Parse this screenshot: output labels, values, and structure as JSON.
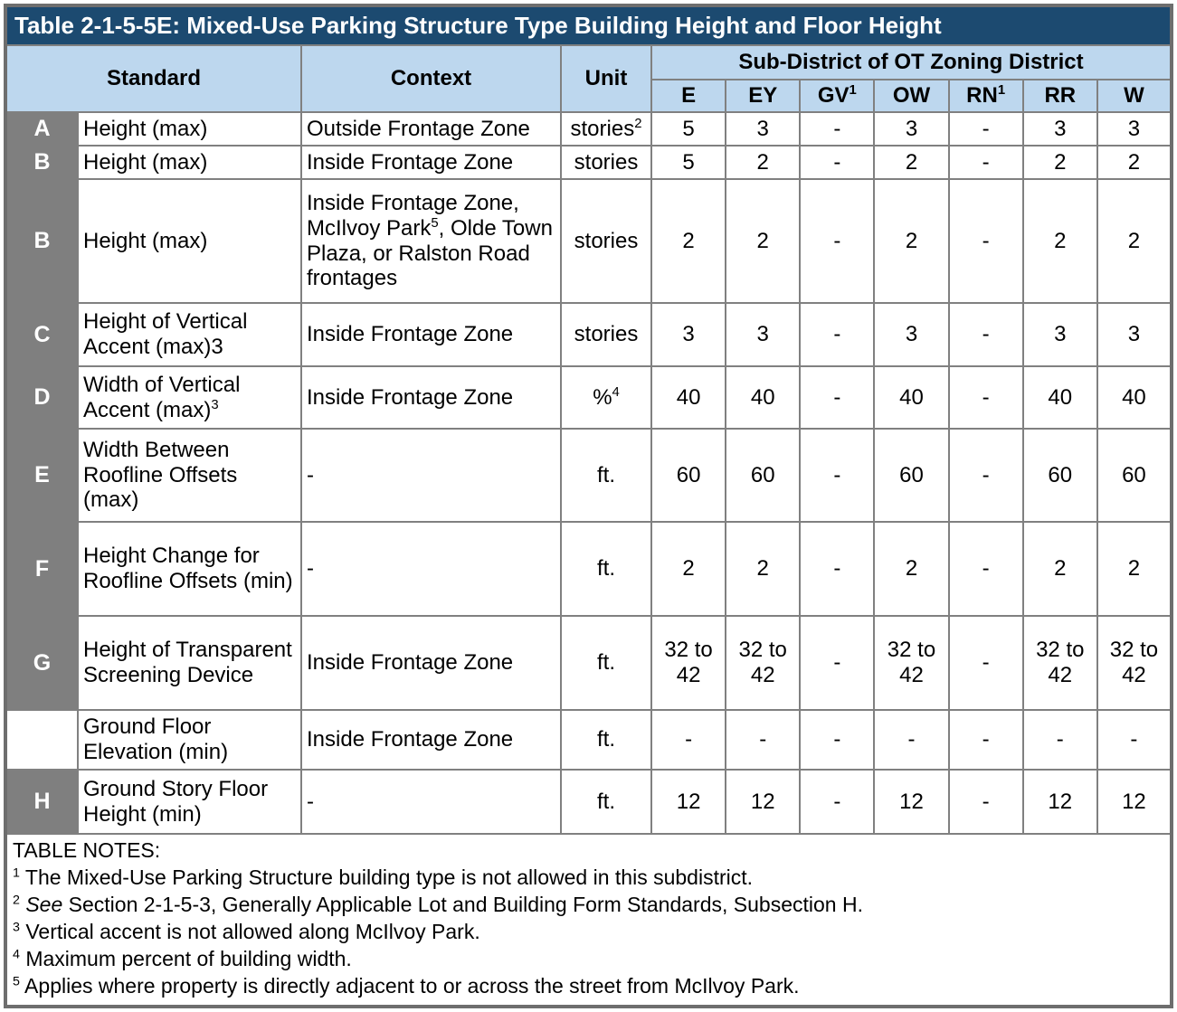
{
  "title": "Table 2-1-5-5E: Mixed-Use Parking Structure Type Building Height and Floor Height",
  "colors": {
    "title_bar": "#1C4A70",
    "header_fill": "#BDD7EE",
    "letter_column_fill": "#7F7F7F",
    "grid_border": "#808080"
  },
  "header": {
    "standard": "Standard",
    "context": "Context",
    "unit": "Unit",
    "subdistrict_group": "Sub-District of OT Zoning District",
    "districts": [
      {
        "label": "E"
      },
      {
        "label": "EY"
      },
      {
        "label": "GV",
        "sup": "1"
      },
      {
        "label": "OW"
      },
      {
        "label": "RN",
        "sup": "1"
      },
      {
        "label": "RR"
      },
      {
        "label": "W"
      }
    ]
  },
  "rows": [
    {
      "letter": "A",
      "standard": [
        {
          "t": "Height (max)"
        }
      ],
      "context": [
        {
          "t": "Outside Frontage Zone"
        }
      ],
      "unit": [
        {
          "t": "stories"
        },
        {
          "sup": "2"
        }
      ],
      "values": [
        "5",
        "3",
        "-",
        "3",
        "-",
        "3",
        "3"
      ]
    },
    {
      "letter": "B",
      "standard": [
        {
          "t": "Height (max)"
        }
      ],
      "context": [
        {
          "t": "Inside Frontage Zone"
        }
      ],
      "unit": [
        {
          "t": "stories"
        }
      ],
      "values": [
        "5",
        "2",
        "-",
        "2",
        "-",
        "2",
        "2"
      ]
    },
    {
      "letter": "B",
      "standard": [
        {
          "t": "Height (max)"
        }
      ],
      "context": [
        {
          "t": "Inside Frontage Zone, McIlvoy Park"
        },
        {
          "sup": "5"
        },
        {
          "t": ", Olde Town Plaza, or Ralston Road frontages"
        }
      ],
      "unit": [
        {
          "t": "stories"
        }
      ],
      "values": [
        "2",
        "2",
        "-",
        "2",
        "-",
        "2",
        "2"
      ]
    },
    {
      "letter": "C",
      "standard": [
        {
          "t": "Height of Vertical Accent (max)3"
        }
      ],
      "context": [
        {
          "t": "Inside Frontage Zone"
        }
      ],
      "unit": [
        {
          "t": "stories"
        }
      ],
      "values": [
        "3",
        "3",
        "-",
        "3",
        "-",
        "3",
        "3"
      ]
    },
    {
      "letter": "D",
      "standard": [
        {
          "t": "Width of Vertical Accent (max)"
        },
        {
          "sup": "3"
        }
      ],
      "context": [
        {
          "t": "Inside Frontage Zone"
        }
      ],
      "unit": [
        {
          "t": "%"
        },
        {
          "sup": "4"
        }
      ],
      "values": [
        "40",
        "40",
        "-",
        "40",
        "-",
        "40",
        "40"
      ]
    },
    {
      "letter": "E",
      "standard": [
        {
          "t": "Width Between Roofline Offsets (max)"
        }
      ],
      "context": [
        {
          "t": "-"
        }
      ],
      "unit": [
        {
          "t": "ft."
        }
      ],
      "values": [
        "60",
        "60",
        "-",
        "60",
        "-",
        "60",
        "60"
      ]
    },
    {
      "letter": "F",
      "standard": [
        {
          "t": "Height Change for Roofline Offsets (min)"
        }
      ],
      "context": [
        {
          "t": "-"
        }
      ],
      "unit": [
        {
          "t": "ft."
        }
      ],
      "values": [
        "2",
        "2",
        "-",
        "2",
        "-",
        "2",
        "2"
      ]
    },
    {
      "letter": "G",
      "standard": [
        {
          "t": "Height of Transparent Screening Device"
        }
      ],
      "context": [
        {
          "t": "Inside Frontage Zone"
        }
      ],
      "unit": [
        {
          "t": "ft."
        }
      ],
      "values": [
        "32 to 42",
        "32 to 42",
        "-",
        "32 to 42",
        "-",
        "32 to 42",
        "32 to 42"
      ]
    },
    {
      "letter": "",
      "standard": [
        {
          "t": "Ground Floor Elevation (min)"
        }
      ],
      "context": [
        {
          "t": "Inside Frontage Zone"
        }
      ],
      "unit": [
        {
          "t": "ft."
        }
      ],
      "values": [
        "-",
        "-",
        "-",
        "-",
        "-",
        "-",
        "-"
      ]
    },
    {
      "letter": "H",
      "standard": [
        {
          "t": "Ground Story Floor Height (min)"
        }
      ],
      "context": [
        {
          "t": "-"
        }
      ],
      "unit": [
        {
          "t": "ft."
        }
      ],
      "values": [
        "12",
        "12",
        "-",
        "12",
        "-",
        "12",
        "12"
      ]
    }
  ],
  "notes": {
    "heading": "TABLE NOTES:",
    "items": [
      [
        {
          "sup": "1"
        },
        {
          "t": " The Mixed-Use Parking Structure building type is not allowed in this subdistrict."
        }
      ],
      [
        {
          "sup": "2"
        },
        {
          "t": " "
        },
        {
          "i": "See"
        },
        {
          "t": " Section 2-1-5-3, Generally Applicable Lot and Building Form  Standards, Subsection H."
        }
      ],
      [
        {
          "sup": "3"
        },
        {
          "t": " Vertical accent is not allowed along McIlvoy Park."
        }
      ],
      [
        {
          "sup": "4"
        },
        {
          "t": " Maximum percent of building width."
        }
      ],
      [
        {
          "sup": "5"
        },
        {
          "t": " Applies where property is directly adjacent to or across the street from McIlvoy Park."
        }
      ]
    ]
  }
}
